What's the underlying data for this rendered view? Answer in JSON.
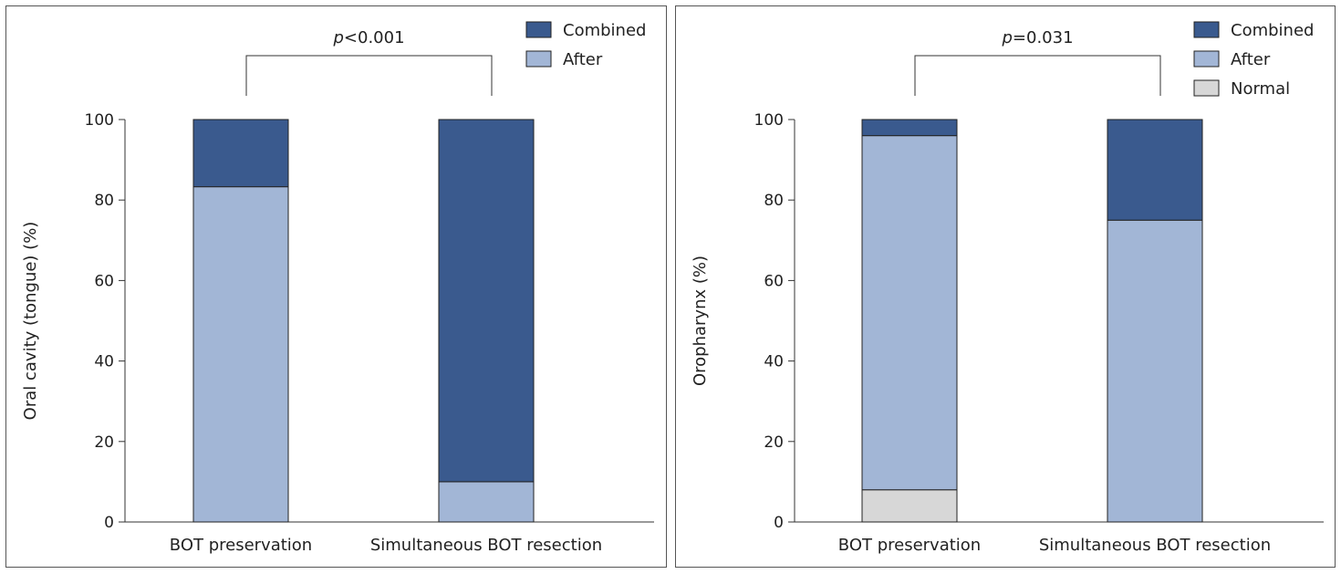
{
  "colors": {
    "Normal": "#d7d7d7",
    "After": "#a2b6d6",
    "Combined": "#3a5a8e"
  },
  "chart_data": [
    {
      "type": "bar",
      "stacked": true,
      "categories": [
        "BOT preservation",
        "Simultaneous BOT resection"
      ],
      "series": [
        {
          "name": "After",
          "values": [
            83.3,
            10.0
          ]
        },
        {
          "name": "Combined",
          "values": [
            16.7,
            90.0
          ]
        }
      ],
      "ylabel": "Oral cavity (tongue) (%)",
      "ylim": [
        0,
        100
      ],
      "yticks": [
        0,
        20,
        40,
        60,
        80,
        100
      ],
      "legend": "top-right",
      "grid": false,
      "annotation": {
        "prefix": "p",
        "text": "<0.001"
      }
    },
    {
      "type": "bar",
      "stacked": true,
      "categories": [
        "BOT preservation",
        "Simultaneous BOT resection"
      ],
      "series": [
        {
          "name": "Normal",
          "values": [
            8.0,
            0.0
          ]
        },
        {
          "name": "After",
          "values": [
            88.0,
            75.0
          ]
        },
        {
          "name": "Combined",
          "values": [
            4.0,
            25.0
          ]
        }
      ],
      "ylabel": "Oropharynx (%)",
      "ylim": [
        0,
        100
      ],
      "yticks": [
        0,
        20,
        40,
        60,
        80,
        100
      ],
      "legend": "top-right",
      "grid": false,
      "annotation": {
        "prefix": "p",
        "text": "=0.031"
      }
    }
  ]
}
